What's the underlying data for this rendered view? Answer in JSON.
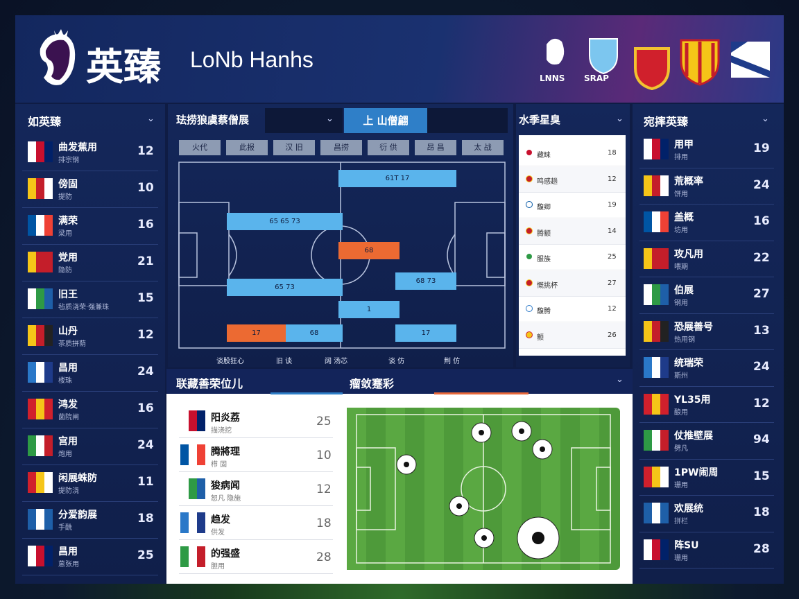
{
  "header": {
    "logo_text": "英臻",
    "title": "LoNb Hanhs",
    "badges": [
      "LNNS",
      "SRAP"
    ]
  },
  "left_panel": {
    "title": "如英臻",
    "rows": [
      {
        "name": "曲发蕉用",
        "sub": "排宗钢",
        "value": 12
      },
      {
        "name": "傍固",
        "sub": "提防",
        "value": 10
      },
      {
        "name": "满荣",
        "sub": "梁用",
        "value": 16
      },
      {
        "name": "党用",
        "sub": "隐防",
        "value": 21
      },
      {
        "name": "旧王",
        "sub": "毡质浇荣·强兼珠",
        "value": 15
      },
      {
        "name": "山丹",
        "sub": "茶质拼荫",
        "value": 12
      },
      {
        "name": "昌用",
        "sub": "楼珠",
        "value": 24
      },
      {
        "name": "鸿发",
        "sub": "菌院闸",
        "value": 16
      },
      {
        "name": "宫用",
        "sub": "炮用",
        "value": 24
      },
      {
        "name": "闲展蛛防",
        "sub": "提防浇",
        "value": 11
      },
      {
        "name": "分爱韵展",
        "sub": "手酰",
        "value": 18
      },
      {
        "name": "昌用",
        "sub": "蒽张用",
        "value": 25
      }
    ]
  },
  "formation": {
    "title": "珐捞狼虞蔡僧展",
    "tab": "上 山僧翩",
    "filters": [
      "火代",
      "此报",
      "汉 旧",
      "昌捞",
      "衍 供",
      "昂 昌",
      "太 战"
    ],
    "bars": [
      "61T 17",
      "65 65 73",
      "68",
      "65 73",
      "68 73",
      "1",
      "17",
      "68",
      "17"
    ],
    "footer": [
      "谈股狂心",
      "旧 谈",
      "阔 汤芯",
      "谈 仿",
      "荆 仿"
    ]
  },
  "stats_list": {
    "title": "水季星臭",
    "rows": [
      {
        "name": "藏睐",
        "value": 18
      },
      {
        "name": "鸣感趟",
        "value": 12
      },
      {
        "name": "馥卿",
        "value": 19
      },
      {
        "name": "腾颛",
        "value": 14
      },
      {
        "name": "服族",
        "value": 25
      },
      {
        "name": "慨挑杯",
        "value": 27
      },
      {
        "name": "馥腾",
        "value": 12
      },
      {
        "name": "颤",
        "value": 26
      }
    ]
  },
  "bottom": {
    "title": "联藏善荣位儿",
    "subtitle": "瘤敛蹇彩",
    "rows": [
      {
        "name": "阳炎荔",
        "sub": "描浇挖",
        "value": 25
      },
      {
        "name": "腾將理",
        "sub": "栉 固",
        "value": 10
      },
      {
        "name": "狻病闻",
        "sub": "恕凡 隐施",
        "value": 12
      },
      {
        "name": "趋发",
        "sub": "供发",
        "value": 18
      },
      {
        "name": "的强盛",
        "sub": "胆用",
        "value": 28
      }
    ]
  },
  "right_panel": {
    "title": "宛摔英臻",
    "rows": [
      {
        "name": "用甲",
        "sub": "排用",
        "value": 19
      },
      {
        "name": "荒概率",
        "sub": "饼用",
        "value": 24
      },
      {
        "name": "盖概",
        "sub": "坊用",
        "value": 16
      },
      {
        "name": "攻凡用",
        "sub": "喂期",
        "value": 22
      },
      {
        "name": "伯展",
        "sub": "钢用",
        "value": 27
      },
      {
        "name": "恐展善号",
        "sub": "热用钢",
        "value": 13
      },
      {
        "name": "统瑞荣",
        "sub": "斯州",
        "value": 24
      },
      {
        "name": "YL35用",
        "sub": "酿用",
        "value": 12
      },
      {
        "name": "仗推壁展",
        "sub": "劈凡",
        "value": 94
      },
      {
        "name": "1PW闹周",
        "sub": "珊用",
        "value": 15
      },
      {
        "name": "欢展统",
        "sub": "拼栏",
        "value": 18
      },
      {
        "name": "阵SU",
        "sub": "珊用",
        "value": 28
      }
    ]
  }
}
